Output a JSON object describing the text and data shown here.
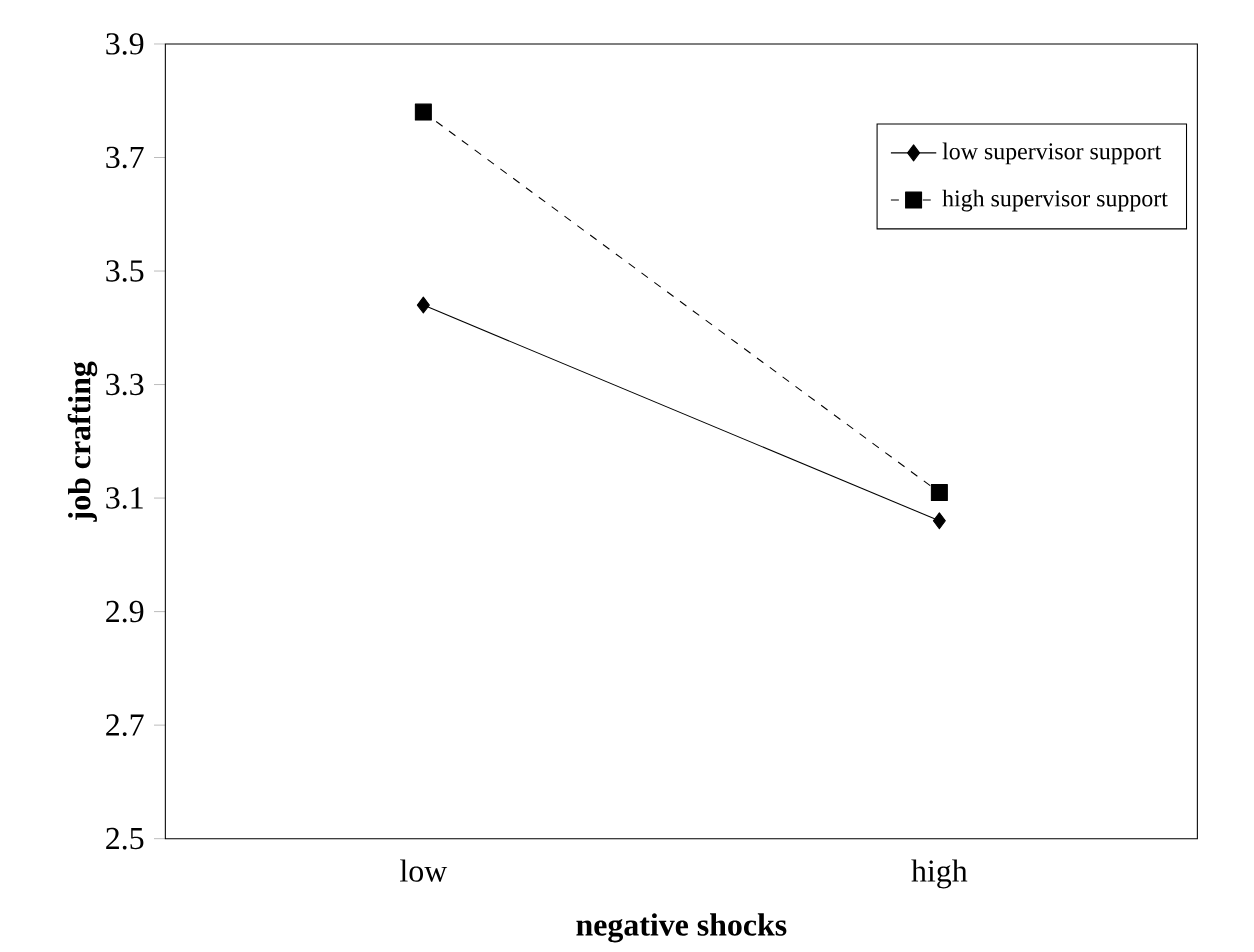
{
  "chart_data": {
    "type": "line",
    "xlabel": "negative shocks",
    "ylabel": "job crafting",
    "categories": [
      "low",
      "high"
    ],
    "series": [
      {
        "name": "low supervisor support",
        "color": "#000000",
        "values": [
          3.44,
          3.06
        ],
        "marker": "diamond",
        "line_style": "solid"
      },
      {
        "name": "high supervisor support",
        "color": "#000000",
        "values": [
          3.78,
          3.11
        ],
        "marker": "square",
        "line_style": "dashed"
      }
    ],
    "ylim": [
      2.5,
      3.9
    ],
    "yticks": [
      2.5,
      2.7,
      2.9,
      3.1,
      3.3,
      3.5,
      3.7,
      3.9
    ],
    "grid": false,
    "legend": "top right"
  }
}
